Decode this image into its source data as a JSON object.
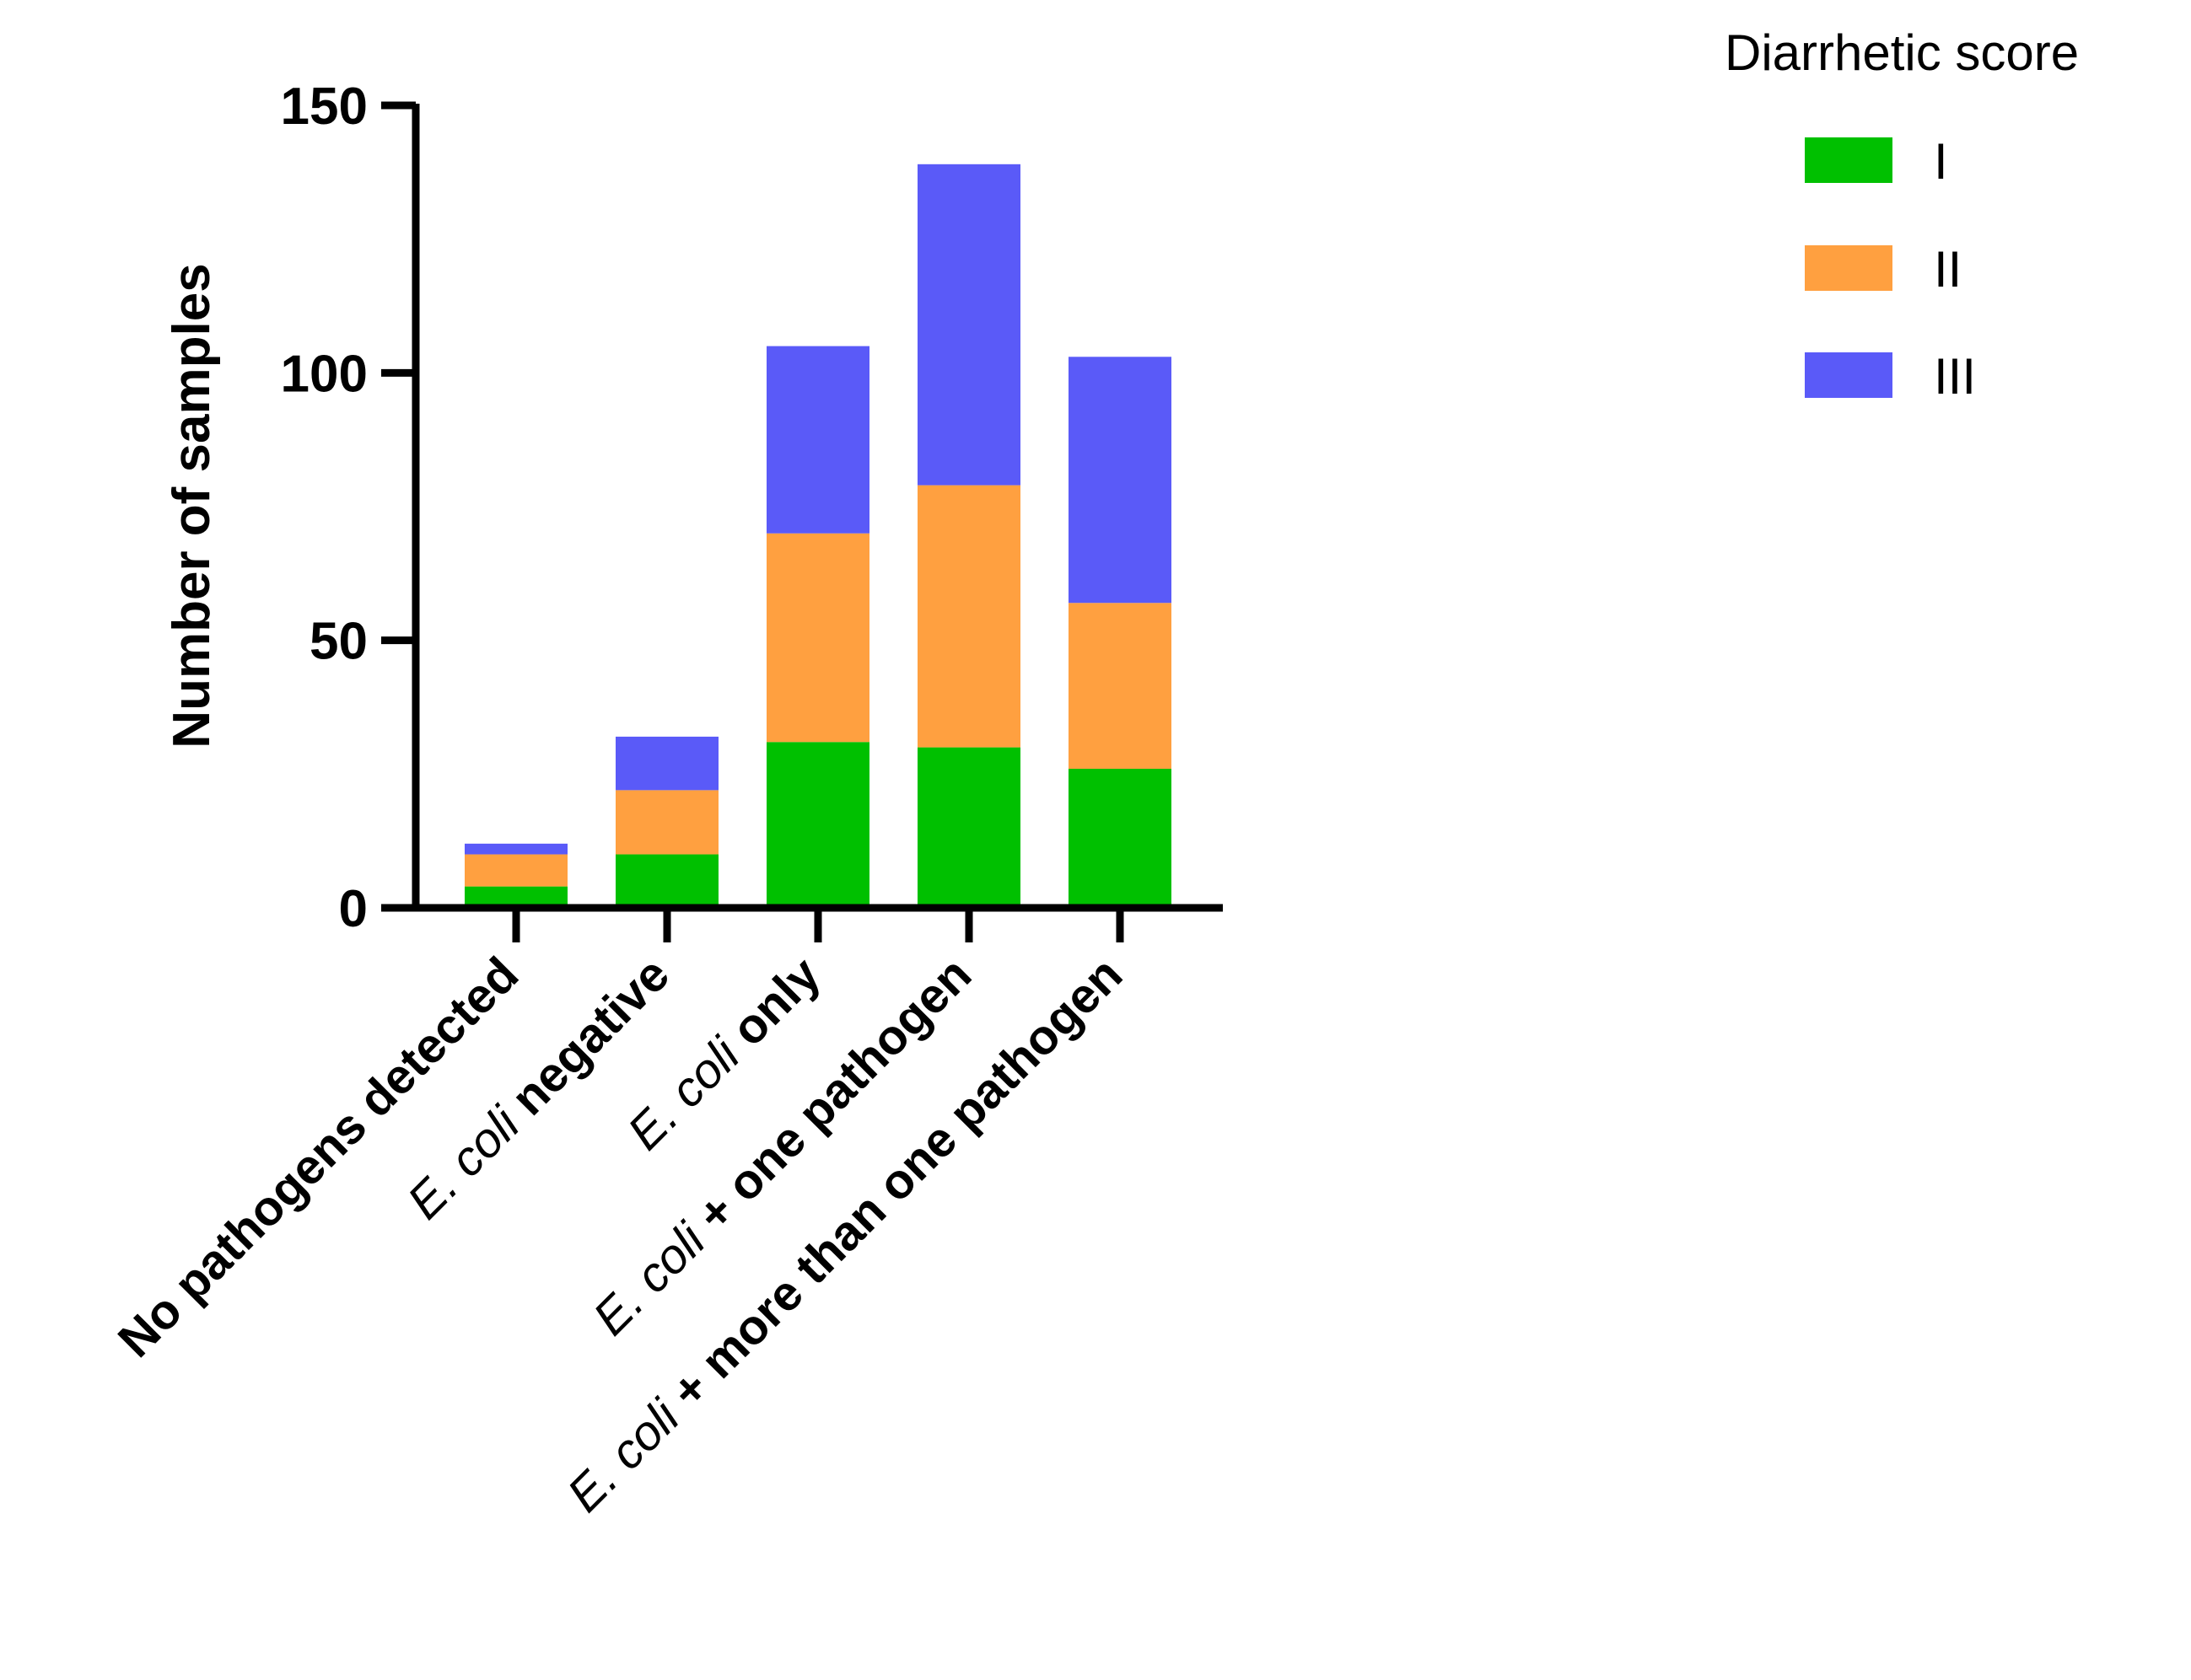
{
  "chart_data": {
    "type": "bar",
    "stacked": true,
    "title": "",
    "xlabel": "",
    "ylabel": "Number of samples",
    "ylim": [
      0,
      150
    ],
    "yticks": [
      0,
      50,
      100,
      150
    ],
    "categories": [
      [
        {
          "text": "No pathogens detected",
          "style": "bold"
        }
      ],
      [
        {
          "text": "E. coli",
          "style": "italic"
        },
        {
          "text": " negative",
          "style": "bold"
        }
      ],
      [
        {
          "text": "E. coli",
          "style": "italic"
        },
        {
          "text": " only",
          "style": "bold"
        }
      ],
      [
        {
          "text": "E. coli",
          "style": "italic"
        },
        {
          "text": " + one pathogen",
          "style": "bold"
        }
      ],
      [
        {
          "text": "E. coli",
          "style": "italic"
        },
        {
          "text": " + more than one pathogen",
          "style": "bold"
        }
      ]
    ],
    "series": [
      {
        "name": "I",
        "color": "#00c000",
        "values": [
          4,
          10,
          31,
          30,
          26
        ]
      },
      {
        "name": "II",
        "color": "#ffa040",
        "values": [
          6,
          12,
          39,
          49,
          31
        ]
      },
      {
        "name": "III",
        "color": "#5a5af8",
        "values": [
          2,
          10,
          35,
          60,
          46
        ]
      }
    ],
    "legend": {
      "title": "Diarrhetic score",
      "position": "top-right"
    }
  }
}
